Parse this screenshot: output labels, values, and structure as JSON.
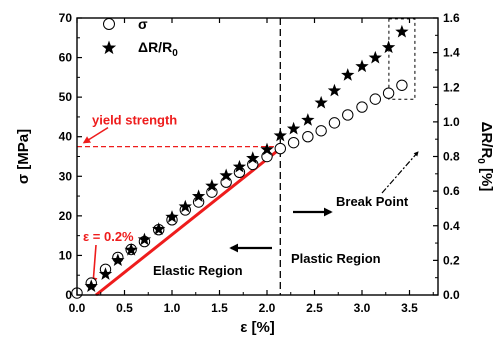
{
  "chart_data": {
    "type": "scatter",
    "xlabel": "ε [%]",
    "ylabel_left": {
      "main": "σ [MPa]"
    },
    "ylabel_right": {
      "main": "ΔR/R",
      "sub": "0",
      "tail": " [%]"
    },
    "xlim": [
      0.0,
      3.8
    ],
    "ylim_left": [
      0,
      70
    ],
    "ylim_right": [
      0.0,
      1.6
    ],
    "x_ticks": [
      0.0,
      0.5,
      1.0,
      1.5,
      2.0,
      2.5,
      3.0,
      3.5
    ],
    "x_tick_labels": [
      "0.0",
      "0.5",
      "1.0",
      "1.5",
      "2.0",
      "2.5",
      "3.0",
      "3.5"
    ],
    "y_left_ticks": [
      0,
      10,
      20,
      30,
      40,
      50,
      60,
      70
    ],
    "y_left_tick_labels": [
      "0",
      "10",
      "20",
      "30",
      "40",
      "50",
      "60",
      "70"
    ],
    "y_right_ticks": [
      0.0,
      0.2,
      0.4,
      0.6,
      0.8,
      1.0,
      1.2,
      1.4,
      1.6
    ],
    "y_right_tick_labels": [
      "0.0",
      "0.2",
      "0.4",
      "0.6",
      "0.8",
      "1.0",
      "1.2",
      "1.4",
      "1.6"
    ],
    "grid": false,
    "legend_position": "top-left",
    "series": [
      {
        "name": "σ",
        "marker": "open-circle",
        "axis": "left",
        "color": "#000000",
        "x": [
          0.0,
          0.15,
          0.3,
          0.43,
          0.57,
          0.71,
          0.86,
          1.0,
          1.14,
          1.28,
          1.42,
          1.57,
          1.71,
          1.85,
          2.0,
          2.14,
          2.28,
          2.43,
          2.57,
          2.71,
          2.85,
          3.0,
          3.14,
          3.28,
          3.42
        ],
        "y": [
          0.5,
          3.0,
          6.5,
          9.5,
          11.5,
          13.5,
          16.5,
          19.0,
          21.5,
          23.5,
          26.0,
          28.5,
          31.0,
          33.0,
          35.0,
          37.0,
          38.5,
          40.0,
          41.5,
          43.5,
          45.5,
          47.5,
          49.5,
          51.0,
          53.0
        ]
      },
      {
        "name": "ΔR/R",
        "name_sub": "0",
        "marker": "filled-star",
        "axis": "right",
        "color": "#000000",
        "x": [
          0.15,
          0.3,
          0.43,
          0.57,
          0.71,
          0.86,
          1.0,
          1.14,
          1.28,
          1.42,
          1.57,
          1.71,
          1.85,
          2.0,
          2.14,
          2.28,
          2.43,
          2.57,
          2.71,
          2.85,
          3.0,
          3.14,
          3.28,
          3.42
        ],
        "y": [
          0.05,
          0.12,
          0.2,
          0.26,
          0.32,
          0.38,
          0.45,
          0.51,
          0.57,
          0.63,
          0.69,
          0.74,
          0.79,
          0.84,
          0.92,
          0.96,
          1.01,
          1.11,
          1.18,
          1.27,
          1.32,
          1.37,
          1.43,
          1.52
        ]
      }
    ],
    "fit_line": {
      "color": "#ee1c1c",
      "x": [
        0.2,
        2.14
      ],
      "y": [
        0,
        37
      ]
    },
    "yield_strength": {
      "label": "yield strength",
      "stress": 37.5,
      "strain": 2.12,
      "color": "#ee1c1c"
    },
    "offset_label": "ε = 0.2%",
    "elastic_label": "Elastic Region",
    "plastic_label": "Plastic Region",
    "break_label": "Break Point",
    "boundary_strain": 2.14
  }
}
